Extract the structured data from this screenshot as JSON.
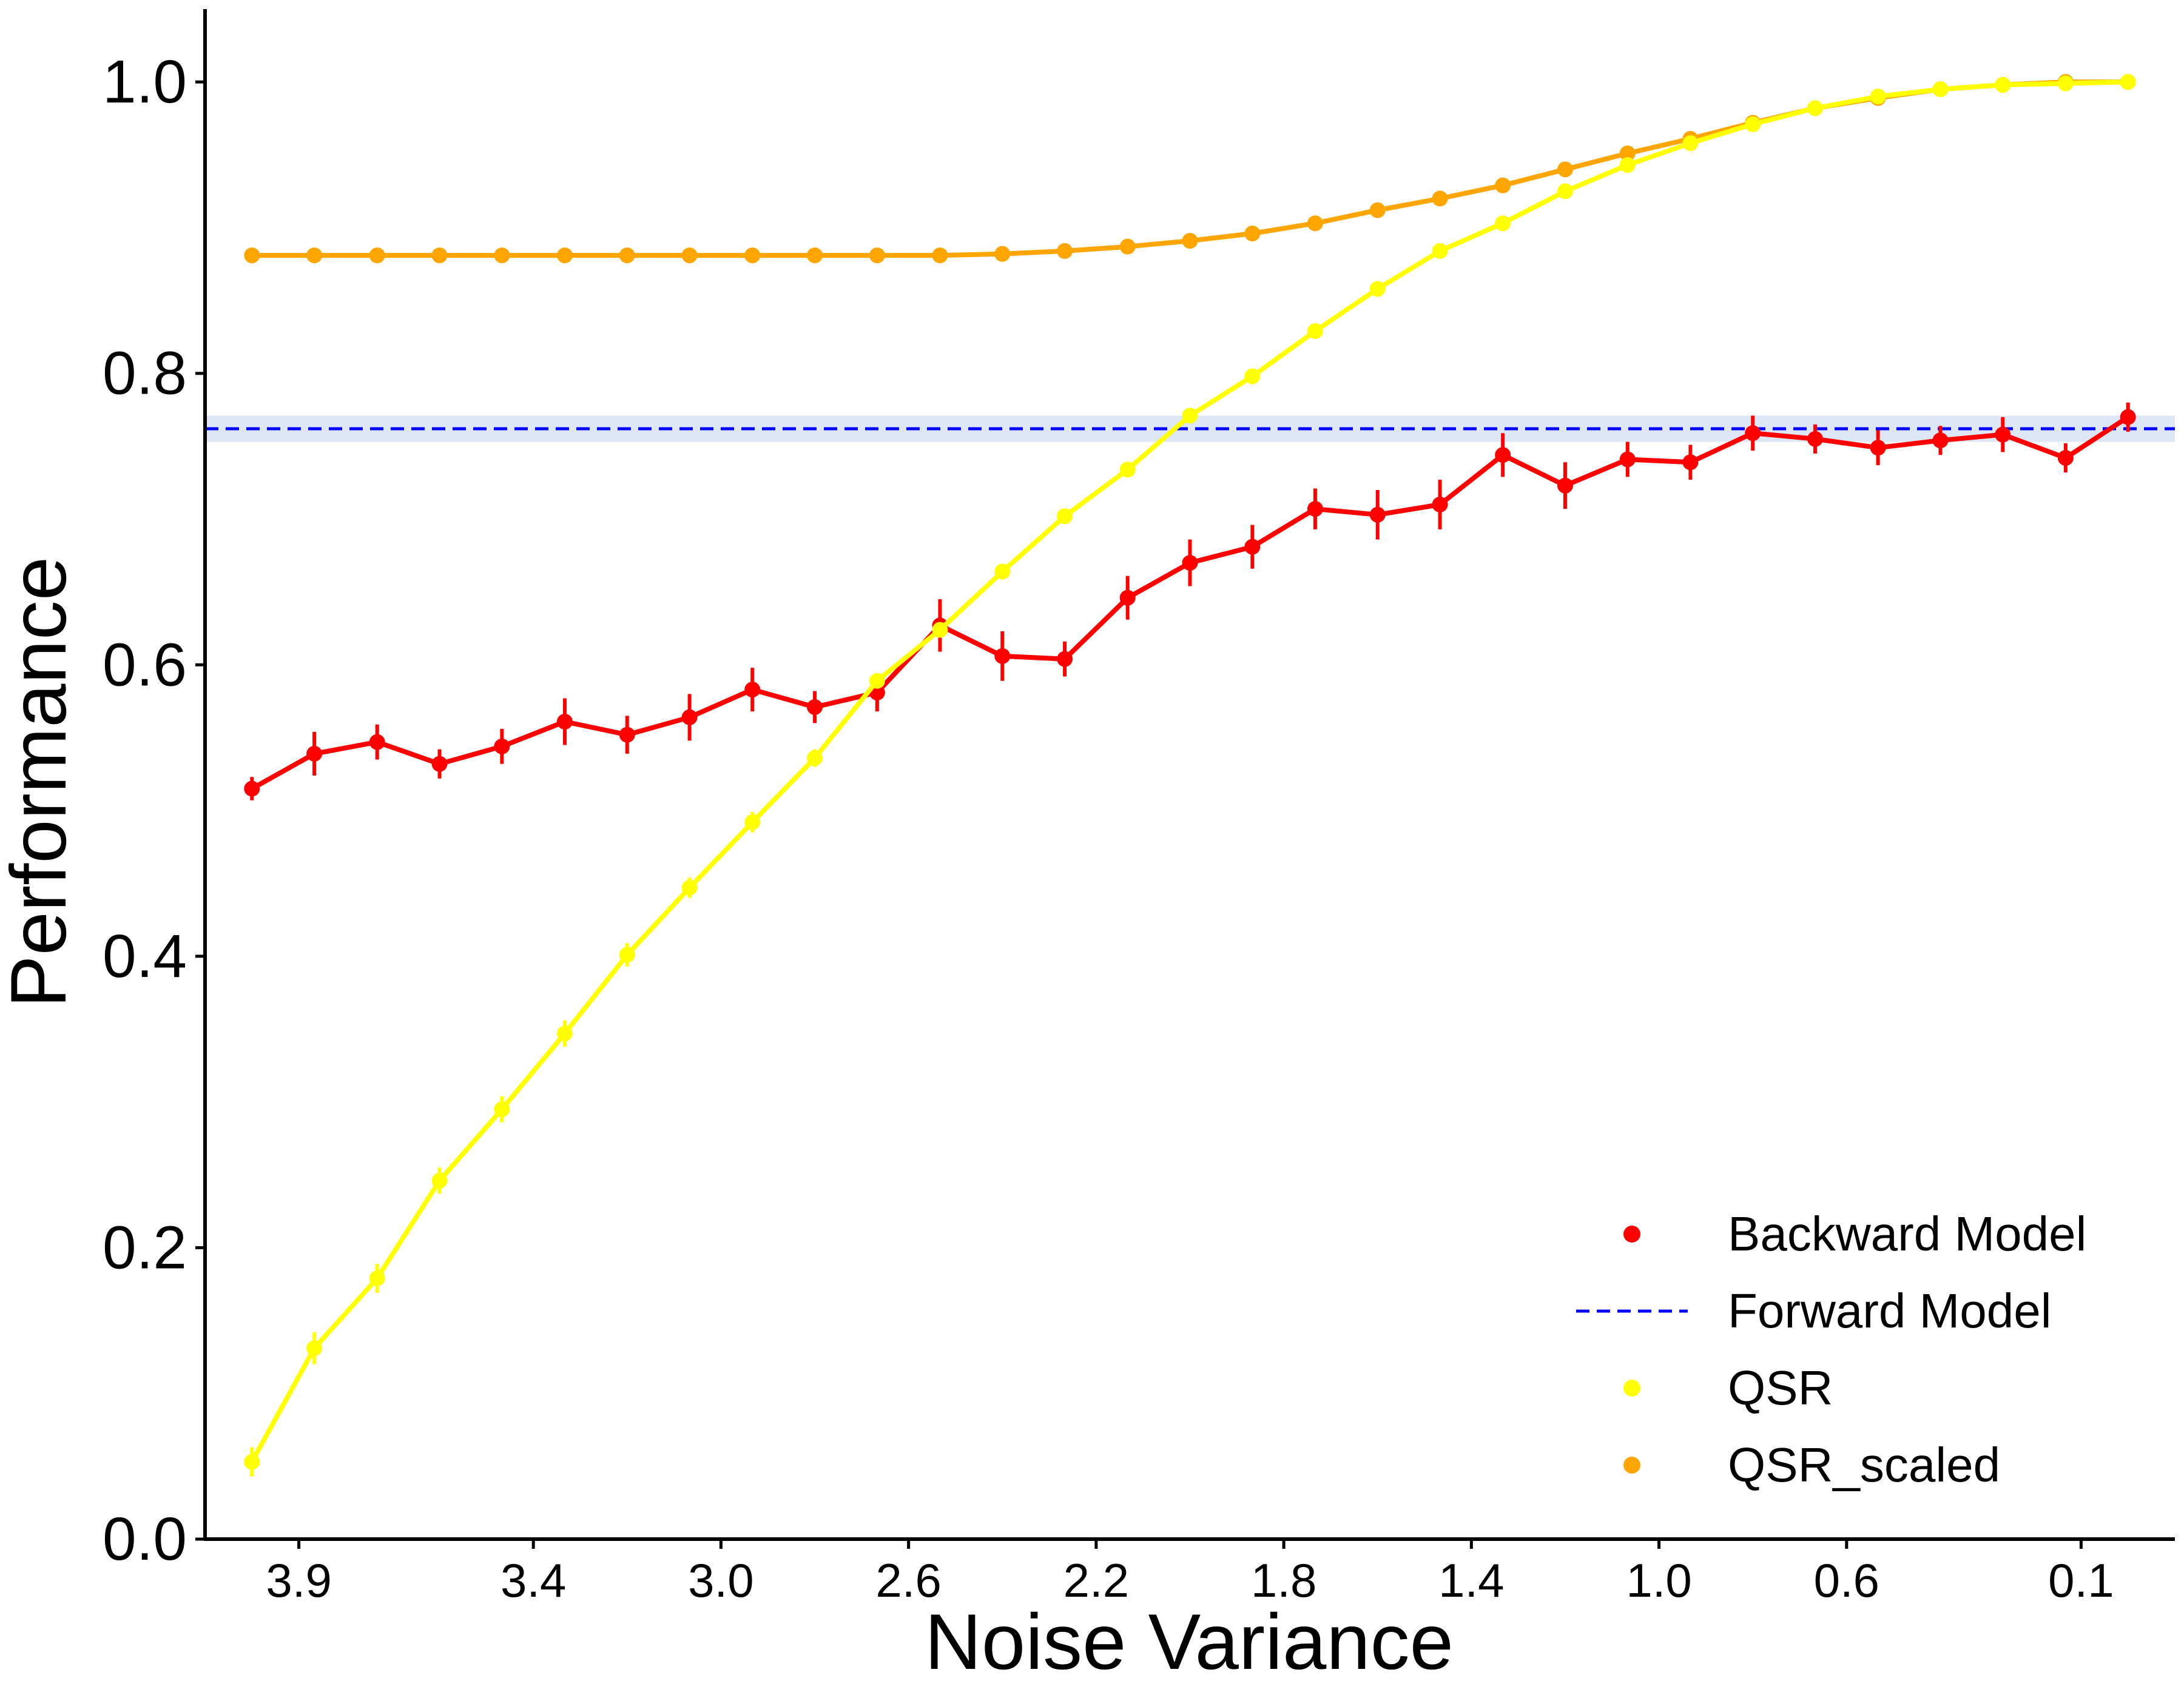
{
  "chart_data": {
    "type": "line",
    "title": "",
    "xlabel": "Noise Variance",
    "ylabel": "Performance",
    "x_reversed": true,
    "xlim": [
      4.1,
      -0.1
    ],
    "ylim": [
      0.0,
      1.05
    ],
    "xticks": [
      {
        "value": 3.9,
        "label": "3.9"
      },
      {
        "value": 3.4,
        "label": "3.4"
      },
      {
        "value": 3.0,
        "label": "3.0"
      },
      {
        "value": 2.6,
        "label": "2.6"
      },
      {
        "value": 2.2,
        "label": "2.2"
      },
      {
        "value": 1.8,
        "label": "1.8"
      },
      {
        "value": 1.4,
        "label": "1.4"
      },
      {
        "value": 1.0,
        "label": "1.0"
      },
      {
        "value": 0.6,
        "label": "0.6"
      },
      {
        "value": 0.1,
        "label": "0.1"
      }
    ],
    "yticks": [
      {
        "value": 0.0,
        "label": "0.0"
      },
      {
        "value": 0.2,
        "label": "0.2"
      },
      {
        "value": 0.4,
        "label": "0.4"
      },
      {
        "value": 0.6,
        "label": "0.6"
      },
      {
        "value": 0.8,
        "label": "0.8"
      },
      {
        "value": 1.0,
        "label": "1.0"
      }
    ],
    "grid": false,
    "legend_position": "bottom-right",
    "x": [
      4.0,
      3.867,
      3.733,
      3.6,
      3.467,
      3.333,
      3.2,
      3.067,
      2.933,
      2.8,
      2.667,
      2.533,
      2.4,
      2.267,
      2.133,
      2.0,
      1.867,
      1.733,
      1.6,
      1.467,
      1.333,
      1.2,
      1.067,
      0.933,
      0.8,
      0.667,
      0.533,
      0.4,
      0.267,
      0.133,
      0.0
    ],
    "series": [
      {
        "name": "Backward Model",
        "color": "#ff0000",
        "marker": "circle",
        "values": [
          0.515,
          0.539,
          0.547,
          0.532,
          0.544,
          0.561,
          0.552,
          0.564,
          0.583,
          0.571,
          0.581,
          0.627,
          0.606,
          0.604,
          0.646,
          0.67,
          0.681,
          0.707,
          0.703,
          0.71,
          0.744,
          0.723,
          0.741,
          0.739,
          0.759,
          0.755,
          0.749,
          0.754,
          0.758,
          0.742,
          0.77
        ],
        "errors": [
          0.008,
          0.015,
          0.012,
          0.01,
          0.012,
          0.016,
          0.013,
          0.016,
          0.015,
          0.011,
          0.013,
          0.018,
          0.017,
          0.012,
          0.015,
          0.016,
          0.015,
          0.014,
          0.017,
          0.017,
          0.015,
          0.016,
          0.012,
          0.012,
          0.012,
          0.01,
          0.012,
          0.01,
          0.012,
          0.01,
          0.01
        ]
      },
      {
        "name": "QSR",
        "color": "#ffff00",
        "marker": "circle",
        "values": [
          0.053,
          0.131,
          0.179,
          0.246,
          0.295,
          0.347,
          0.401,
          0.447,
          0.492,
          0.536,
          0.589,
          0.624,
          0.664,
          0.702,
          0.734,
          0.771,
          0.798,
          0.829,
          0.858,
          0.884,
          0.903,
          0.925,
          0.943,
          0.958,
          0.971,
          0.982,
          0.99,
          0.995,
          0.998,
          0.999,
          1.0
        ],
        "errors": [
          0.01,
          0.011,
          0.01,
          0.009,
          0.009,
          0.009,
          0.008,
          0.007,
          0.007,
          0.006,
          0.005,
          0.005,
          0.004,
          0.004,
          0.004,
          0.004,
          0.003,
          0.003,
          0.003,
          0.003,
          0.003,
          0.002,
          0.002,
          0.002,
          0.002,
          0.002,
          0.001,
          0.001,
          0.001,
          0.001,
          0.001
        ]
      },
      {
        "name": "QSR_scaled",
        "color": "#ffa500",
        "marker": "circle",
        "values": [
          0.881,
          0.881,
          0.881,
          0.881,
          0.881,
          0.881,
          0.881,
          0.881,
          0.881,
          0.881,
          0.881,
          0.881,
          0.882,
          0.884,
          0.887,
          0.891,
          0.896,
          0.903,
          0.912,
          0.92,
          0.929,
          0.94,
          0.951,
          0.961,
          0.972,
          0.982,
          0.989,
          0.995,
          0.998,
          1.0,
          1.0
        ],
        "errors": [
          0.002,
          0.002,
          0.002,
          0.002,
          0.002,
          0.002,
          0.002,
          0.002,
          0.002,
          0.002,
          0.002,
          0.002,
          0.002,
          0.002,
          0.002,
          0.002,
          0.002,
          0.002,
          0.002,
          0.002,
          0.002,
          0.002,
          0.002,
          0.002,
          0.002,
          0.002,
          0.002,
          0.002,
          0.002,
          0.002,
          0.002
        ]
      }
    ],
    "reference_lines": [
      {
        "name": "Forward Model",
        "color": "#0000ff",
        "style": "dashed",
        "y": 0.762,
        "band": [
          0.753,
          0.771
        ],
        "band_color": "#dde6f5"
      }
    ],
    "legend": [
      {
        "label": "Backward Model",
        "kind": "marker",
        "color": "#ff0000"
      },
      {
        "label": "Forward Model",
        "kind": "dashed-line",
        "color": "#0000ff"
      },
      {
        "label": "QSR",
        "kind": "marker",
        "color": "#ffff00"
      },
      {
        "label": "QSR_scaled",
        "kind": "marker",
        "color": "#ffa500"
      }
    ]
  }
}
